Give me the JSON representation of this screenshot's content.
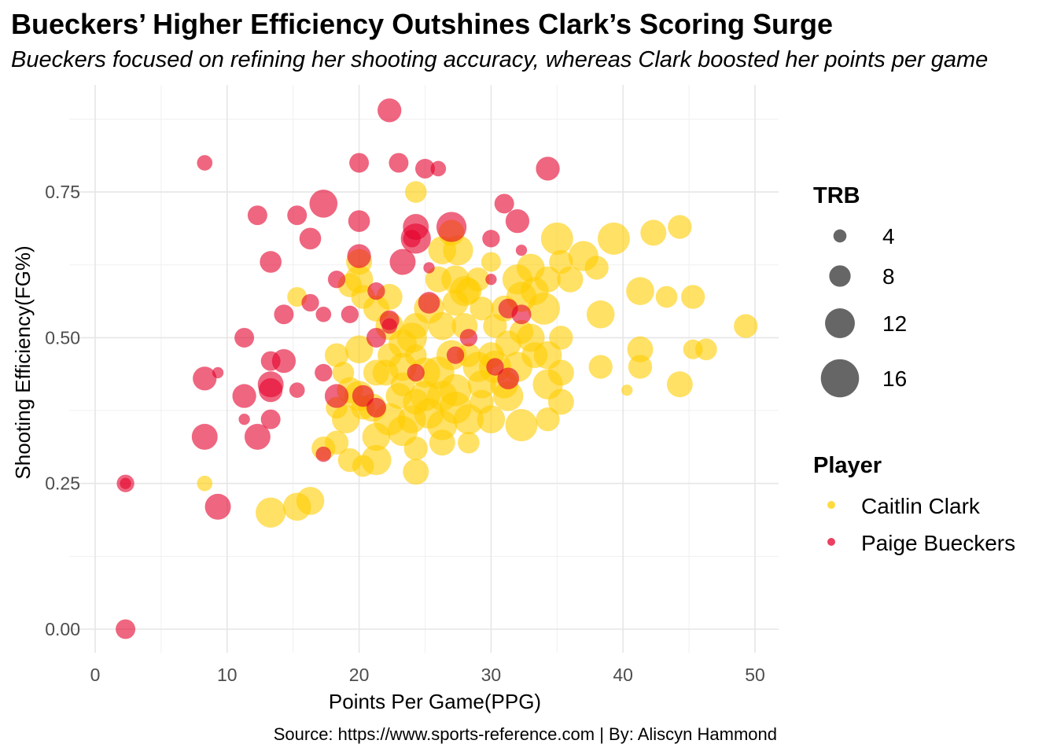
{
  "chart_data": {
    "type": "scatter",
    "title": "Bueckers’ Higher Efficiency Outshines Clark’s Scoring Surge",
    "subtitle": "Bueckers focused on refining her shooting accuracy, whereas Clark boosted her points per game",
    "xlabel": "Points Per Game(PPG)",
    "ylabel": "Shooting Efficiency(FG%)",
    "caption": "Source: https://www.sports-reference.com | By: Aliscyn Hammond",
    "xlim": [
      0,
      52
    ],
    "ylim": [
      -0.04,
      0.9
    ],
    "x_ticks": [
      "0",
      "10",
      "20",
      "30",
      "40",
      "50"
    ],
    "y_ticks": [
      "0.00",
      "0.25",
      "0.50",
      "0.75"
    ],
    "grid": true,
    "size_legend": {
      "title": "TRB",
      "entries": [
        "4",
        "8",
        "12",
        "16"
      ],
      "values": [
        4,
        8,
        12,
        16
      ]
    },
    "color_legend": {
      "title": "Player",
      "entries": [
        "Caitlin Clark",
        "Paige Bueckers"
      ]
    },
    "series": [
      {
        "name": "Caitlin Clark",
        "color": "#FFCD00",
        "points": [
          {
            "x": 24.3,
            "y": 0.75,
            "trb": 8
          },
          {
            "x": 27,
            "y": 0.68,
            "trb": 10
          },
          {
            "x": 27.5,
            "y": 0.65,
            "trb": 12
          },
          {
            "x": 26,
            "y": 0.6,
            "trb": 10
          },
          {
            "x": 28,
            "y": 0.58,
            "trb": 12
          },
          {
            "x": 29,
            "y": 0.6,
            "trb": 9
          },
          {
            "x": 30,
            "y": 0.63,
            "trb": 7
          },
          {
            "x": 31,
            "y": 0.55,
            "trb": 10
          },
          {
            "x": 32,
            "y": 0.6,
            "trb": 12
          },
          {
            "x": 33,
            "y": 0.62,
            "trb": 11
          },
          {
            "x": 34,
            "y": 0.55,
            "trb": 13
          },
          {
            "x": 35,
            "y": 0.67,
            "trb": 13
          },
          {
            "x": 35.3,
            "y": 0.63,
            "trb": 9
          },
          {
            "x": 36,
            "y": 0.6,
            "trb": 10
          },
          {
            "x": 37,
            "y": 0.64,
            "trb": 12
          },
          {
            "x": 38,
            "y": 0.62,
            "trb": 9
          },
          {
            "x": 39.3,
            "y": 0.67,
            "trb": 13
          },
          {
            "x": 42.3,
            "y": 0.68,
            "trb": 10
          },
          {
            "x": 44.3,
            "y": 0.69,
            "trb": 9
          },
          {
            "x": 41.3,
            "y": 0.58,
            "trb": 11
          },
          {
            "x": 43.3,
            "y": 0.57,
            "trb": 8
          },
          {
            "x": 45.3,
            "y": 0.57,
            "trb": 9
          },
          {
            "x": 38.3,
            "y": 0.54,
            "trb": 11
          },
          {
            "x": 49.3,
            "y": 0.52,
            "trb": 9
          },
          {
            "x": 41.3,
            "y": 0.48,
            "trb": 10
          },
          {
            "x": 45.3,
            "y": 0.48,
            "trb": 7
          },
          {
            "x": 46.3,
            "y": 0.48,
            "trb": 8
          },
          {
            "x": 38.3,
            "y": 0.45,
            "trb": 9
          },
          {
            "x": 41.3,
            "y": 0.45,
            "trb": 9
          },
          {
            "x": 44.3,
            "y": 0.42,
            "trb": 10
          },
          {
            "x": 40.3,
            "y": 0.41,
            "trb": 3
          },
          {
            "x": 35.3,
            "y": 0.5,
            "trb": 9
          },
          {
            "x": 35.3,
            "y": 0.44,
            "trb": 10
          },
          {
            "x": 35.3,
            "y": 0.39,
            "trb": 10
          },
          {
            "x": 34.3,
            "y": 0.47,
            "trb": 11
          },
          {
            "x": 33,
            "y": 0.5,
            "trb": 11
          },
          {
            "x": 32,
            "y": 0.45,
            "trb": 12
          },
          {
            "x": 31,
            "y": 0.42,
            "trb": 11
          },
          {
            "x": 30,
            "y": 0.47,
            "trb": 10
          },
          {
            "x": 29,
            "y": 0.45,
            "trb": 12
          },
          {
            "x": 28,
            "y": 0.52,
            "trb": 10
          },
          {
            "x": 27,
            "y": 0.47,
            "trb": 12
          },
          {
            "x": 26,
            "y": 0.44,
            "trb": 13
          },
          {
            "x": 25,
            "y": 0.4,
            "trb": 12
          },
          {
            "x": 24,
            "y": 0.36,
            "trb": 11
          },
          {
            "x": 23,
            "y": 0.4,
            "trb": 10
          },
          {
            "x": 22,
            "y": 0.44,
            "trb": 10
          },
          {
            "x": 21,
            "y": 0.38,
            "trb": 11
          },
          {
            "x": 20,
            "y": 0.4,
            "trb": 12
          },
          {
            "x": 19,
            "y": 0.36,
            "trb": 11
          },
          {
            "x": 18.3,
            "y": 0.47,
            "trb": 9
          },
          {
            "x": 18.3,
            "y": 0.38,
            "trb": 8
          },
          {
            "x": 20,
            "y": 0.48,
            "trb": 11
          },
          {
            "x": 20,
            "y": 0.6,
            "trb": 11
          },
          {
            "x": 20,
            "y": 0.63,
            "trb": 10
          },
          {
            "x": 19.3,
            "y": 0.59,
            "trb": 9
          },
          {
            "x": 22.3,
            "y": 0.57,
            "trb": 10
          },
          {
            "x": 22.3,
            "y": 0.52,
            "trb": 11
          },
          {
            "x": 24,
            "y": 0.5,
            "trb": 12
          },
          {
            "x": 25,
            "y": 0.44,
            "trb": 12
          },
          {
            "x": 26.3,
            "y": 0.35,
            "trb": 12
          },
          {
            "x": 27.3,
            "y": 0.38,
            "trb": 13
          },
          {
            "x": 28.3,
            "y": 0.32,
            "trb": 8
          },
          {
            "x": 24.3,
            "y": 0.27,
            "trb": 10
          },
          {
            "x": 24.3,
            "y": 0.31,
            "trb": 9
          },
          {
            "x": 23.3,
            "y": 0.34,
            "trb": 12
          },
          {
            "x": 21.3,
            "y": 0.29,
            "trb": 12
          },
          {
            "x": 20.3,
            "y": 0.28,
            "trb": 8
          },
          {
            "x": 19.3,
            "y": 0.29,
            "trb": 9
          },
          {
            "x": 18.3,
            "y": 0.32,
            "trb": 9
          },
          {
            "x": 17.3,
            "y": 0.31,
            "trb": 9
          },
          {
            "x": 16.3,
            "y": 0.22,
            "trb": 11
          },
          {
            "x": 15.3,
            "y": 0.21,
            "trb": 11
          },
          {
            "x": 13.3,
            "y": 0.2,
            "trb": 12
          },
          {
            "x": 8.3,
            "y": 0.25,
            "trb": 5
          },
          {
            "x": 15.3,
            "y": 0.57,
            "trb": 7
          },
          {
            "x": 26.3,
            "y": 0.32,
            "trb": 10
          },
          {
            "x": 30,
            "y": 0.36,
            "trb": 11
          },
          {
            "x": 32.3,
            "y": 0.35,
            "trb": 13
          },
          {
            "x": 34.3,
            "y": 0.36,
            "trb": 9
          },
          {
            "x": 31.3,
            "y": 0.4,
            "trb": 12
          },
          {
            "x": 29.3,
            "y": 0.42,
            "trb": 11
          },
          {
            "x": 28.3,
            "y": 0.47,
            "trb": 9
          },
          {
            "x": 30.3,
            "y": 0.52,
            "trb": 9
          },
          {
            "x": 27.3,
            "y": 0.56,
            "trb": 10
          },
          {
            "x": 26.3,
            "y": 0.52,
            "trb": 11
          },
          {
            "x": 25.3,
            "y": 0.55,
            "trb": 12
          },
          {
            "x": 24.3,
            "y": 0.47,
            "trb": 8
          },
          {
            "x": 23.3,
            "y": 0.45,
            "trb": 11
          },
          {
            "x": 22.3,
            "y": 0.36,
            "trb": 13
          },
          {
            "x": 21.3,
            "y": 0.33,
            "trb": 11
          },
          {
            "x": 20.3,
            "y": 0.38,
            "trb": 9
          },
          {
            "x": 19.3,
            "y": 0.41,
            "trb": 10
          },
          {
            "x": 18.8,
            "y": 0.44,
            "trb": 8
          },
          {
            "x": 27.3,
            "y": 0.41,
            "trb": 13
          },
          {
            "x": 26.3,
            "y": 0.4,
            "trb": 12
          },
          {
            "x": 25.3,
            "y": 0.37,
            "trb": 12
          },
          {
            "x": 24.3,
            "y": 0.39,
            "trb": 10
          },
          {
            "x": 23.3,
            "y": 0.42,
            "trb": 9
          },
          {
            "x": 28.3,
            "y": 0.36,
            "trb": 12
          },
          {
            "x": 29.3,
            "y": 0.39,
            "trb": 9
          },
          {
            "x": 30.3,
            "y": 0.45,
            "trb": 13
          },
          {
            "x": 31.3,
            "y": 0.49,
            "trb": 10
          },
          {
            "x": 32.3,
            "y": 0.51,
            "trb": 9
          },
          {
            "x": 33.3,
            "y": 0.47,
            "trb": 10
          },
          {
            "x": 34.3,
            "y": 0.42,
            "trb": 12
          },
          {
            "x": 24.3,
            "y": 0.52,
            "trb": 10
          },
          {
            "x": 23.3,
            "y": 0.49,
            "trb": 11
          },
          {
            "x": 22.3,
            "y": 0.47,
            "trb": 9
          },
          {
            "x": 21.3,
            "y": 0.44,
            "trb": 10
          },
          {
            "x": 28.3,
            "y": 0.58,
            "trb": 10
          },
          {
            "x": 27.3,
            "y": 0.6,
            "trb": 11
          },
          {
            "x": 29.3,
            "y": 0.55,
            "trb": 9
          },
          {
            "x": 33.3,
            "y": 0.58,
            "trb": 11
          },
          {
            "x": 34.3,
            "y": 0.6,
            "trb": 10
          },
          {
            "x": 32.3,
            "y": 0.57,
            "trb": 12
          },
          {
            "x": 21.3,
            "y": 0.55,
            "trb": 10
          },
          {
            "x": 20.3,
            "y": 0.57,
            "trb": 9
          },
          {
            "x": 26.3,
            "y": 0.65,
            "trb": 11
          }
        ]
      },
      {
        "name": "Paige Bueckers",
        "color": "#E4002B",
        "points": [
          {
            "x": 22.3,
            "y": 0.89,
            "trb": 9
          },
          {
            "x": 8.3,
            "y": 0.8,
            "trb": 5
          },
          {
            "x": 20,
            "y": 0.8,
            "trb": 7
          },
          {
            "x": 23,
            "y": 0.8,
            "trb": 7
          },
          {
            "x": 25,
            "y": 0.79,
            "trb": 7
          },
          {
            "x": 26,
            "y": 0.79,
            "trb": 5
          },
          {
            "x": 34.3,
            "y": 0.79,
            "trb": 9
          },
          {
            "x": 12.3,
            "y": 0.71,
            "trb": 7
          },
          {
            "x": 15.3,
            "y": 0.71,
            "trb": 7
          },
          {
            "x": 17.3,
            "y": 0.73,
            "trb": 11
          },
          {
            "x": 20,
            "y": 0.7,
            "trb": 8
          },
          {
            "x": 24.3,
            "y": 0.69,
            "trb": 10
          },
          {
            "x": 27,
            "y": 0.69,
            "trb": 12
          },
          {
            "x": 31,
            "y": 0.73,
            "trb": 7
          },
          {
            "x": 32,
            "y": 0.7,
            "trb": 9
          },
          {
            "x": 16.3,
            "y": 0.67,
            "trb": 8
          },
          {
            "x": 24.3,
            "y": 0.67,
            "trb": 12
          },
          {
            "x": 24,
            "y": 0.67,
            "trb": 6
          },
          {
            "x": 30,
            "y": 0.67,
            "trb": 6
          },
          {
            "x": 32.3,
            "y": 0.65,
            "trb": 3
          },
          {
            "x": 13.3,
            "y": 0.63,
            "trb": 8
          },
          {
            "x": 20,
            "y": 0.64,
            "trb": 9
          },
          {
            "x": 23.3,
            "y": 0.63,
            "trb": 10
          },
          {
            "x": 18.3,
            "y": 0.6,
            "trb": 6
          },
          {
            "x": 21.3,
            "y": 0.58,
            "trb": 6
          },
          {
            "x": 25.3,
            "y": 0.62,
            "trb": 3
          },
          {
            "x": 30,
            "y": 0.6,
            "trb": 3
          },
          {
            "x": 16.3,
            "y": 0.56,
            "trb": 6
          },
          {
            "x": 14.3,
            "y": 0.54,
            "trb": 7
          },
          {
            "x": 17.3,
            "y": 0.54,
            "trb": 5
          },
          {
            "x": 19.3,
            "y": 0.54,
            "trb": 6
          },
          {
            "x": 22.3,
            "y": 0.53,
            "trb": 7
          },
          {
            "x": 25.3,
            "y": 0.56,
            "trb": 8
          },
          {
            "x": 31.3,
            "y": 0.55,
            "trb": 7
          },
          {
            "x": 32.3,
            "y": 0.54,
            "trb": 7
          },
          {
            "x": 11.3,
            "y": 0.5,
            "trb": 7
          },
          {
            "x": 21.3,
            "y": 0.5,
            "trb": 7
          },
          {
            "x": 14.3,
            "y": 0.46,
            "trb": 9
          },
          {
            "x": 13.3,
            "y": 0.46,
            "trb": 7
          },
          {
            "x": 8.3,
            "y": 0.43,
            "trb": 9
          },
          {
            "x": 9.3,
            "y": 0.44,
            "trb": 3
          },
          {
            "x": 13.3,
            "y": 0.42,
            "trb": 10
          },
          {
            "x": 13.3,
            "y": 0.41,
            "trb": 9
          },
          {
            "x": 15.3,
            "y": 0.41,
            "trb": 5
          },
          {
            "x": 11.3,
            "y": 0.4,
            "trb": 9
          },
          {
            "x": 17.3,
            "y": 0.44,
            "trb": 6
          },
          {
            "x": 18.3,
            "y": 0.4,
            "trb": 9
          },
          {
            "x": 20.3,
            "y": 0.4,
            "trb": 8
          },
          {
            "x": 21.3,
            "y": 0.38,
            "trb": 7
          },
          {
            "x": 13.3,
            "y": 0.36,
            "trb": 7
          },
          {
            "x": 11.3,
            "y": 0.36,
            "trb": 3
          },
          {
            "x": 8.3,
            "y": 0.33,
            "trb": 10
          },
          {
            "x": 12.3,
            "y": 0.33,
            "trb": 10
          },
          {
            "x": 17.3,
            "y": 0.3,
            "trb": 5
          },
          {
            "x": 2.3,
            "y": 0.25,
            "trb": 6
          },
          {
            "x": 2.3,
            "y": 0.25,
            "trb": 3
          },
          {
            "x": 9.3,
            "y": 0.21,
            "trb": 10
          },
          {
            "x": 2.3,
            "y": 0.0,
            "trb": 7
          },
          {
            "x": 28.3,
            "y": 0.5,
            "trb": 6
          },
          {
            "x": 27.3,
            "y": 0.47,
            "trb": 6
          },
          {
            "x": 24.3,
            "y": 0.44,
            "trb": 6
          },
          {
            "x": 30.3,
            "y": 0.45,
            "trb": 6
          },
          {
            "x": 31.3,
            "y": 0.43,
            "trb": 8
          },
          {
            "x": 22.3,
            "y": 0.52,
            "trb": 5
          }
        ]
      }
    ]
  }
}
